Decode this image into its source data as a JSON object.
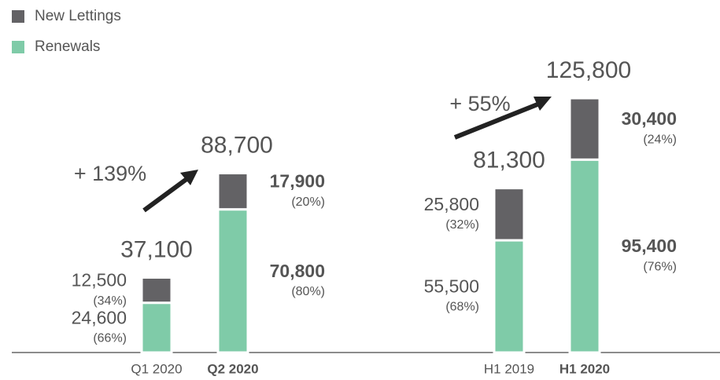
{
  "chart_data": {
    "type": "stacked_bar",
    "categories": [
      "Q1 2020",
      "Q2 2020",
      "H1 2019",
      "H1 2020"
    ],
    "highlight": [
      false,
      true,
      false,
      true
    ],
    "series": [
      {
        "name": "Renewals",
        "color": "#7fcba8",
        "values": [
          24600,
          70800,
          55500,
          95400
        ],
        "value_labels": [
          "24,600",
          "70,800",
          "55,500",
          "95,400"
        ],
        "share_labels": [
          "(66%)",
          "(80%)",
          "(68%)",
          "(76%)"
        ]
      },
      {
        "name": "New Lettings",
        "color": "#636265",
        "values": [
          12500,
          17900,
          25800,
          30400
        ],
        "value_labels": [
          "12,500",
          "17,900",
          "25,800",
          "30,400"
        ],
        "share_labels": [
          "(34%)",
          "(20%)",
          "(32%)",
          "(24%)"
        ]
      }
    ],
    "totals": [
      37100,
      88700,
      81300,
      125800
    ],
    "total_labels": [
      "37,100",
      "88,700",
      "81,300",
      "125,800"
    ],
    "growth_labels": [
      "+ 139%",
      "+ 55%"
    ],
    "growth_color": "#1aa874"
  }
}
